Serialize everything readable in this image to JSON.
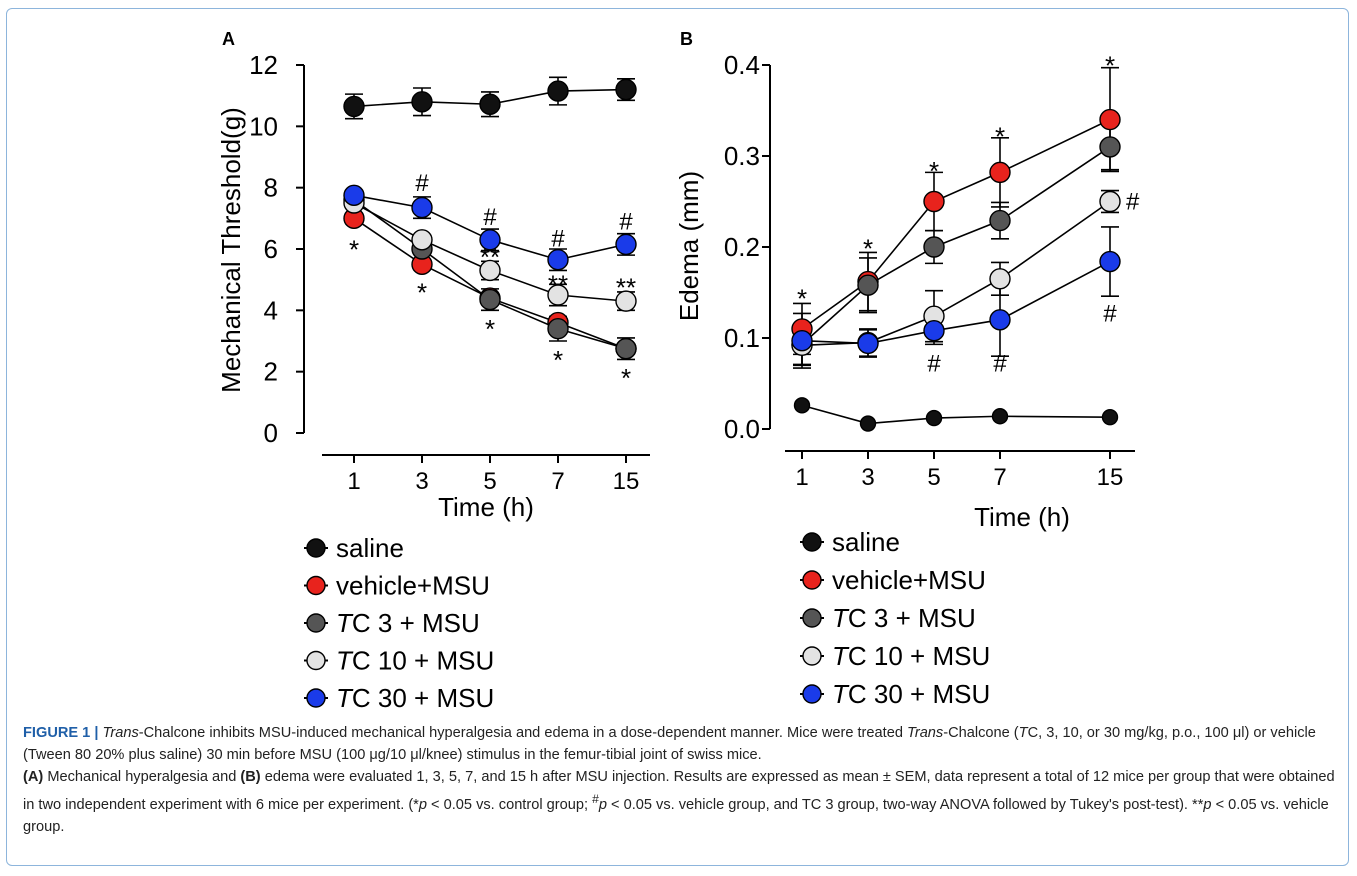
{
  "colors": {
    "saline": "#111111",
    "vehicle": "#e8231d",
    "tc3": "#555555",
    "tc10": "#e3e3e3",
    "tc30": "#1a3be9",
    "frame": "#8db5dc",
    "caption_label": "#1f5fa8"
  },
  "chart_data": [
    {
      "panel": "A",
      "type": "line",
      "xlabel": "Time (h)",
      "ylabel": "Mechanical Threshold(g)",
      "x": [
        1,
        3,
        5,
        7,
        15
      ],
      "x_tick_labels": [
        "1",
        "3",
        "5",
        "7",
        "15"
      ],
      "ylim": [
        0,
        12
      ],
      "y_ticks": [
        "0",
        "2",
        "4",
        "6",
        "8",
        "10",
        "12"
      ],
      "series": [
        {
          "key": "saline",
          "name": "saline",
          "values": [
            10.65,
            10.8,
            10.72,
            11.15,
            11.2
          ],
          "errors": [
            0.4,
            0.45,
            0.4,
            0.45,
            0.35
          ]
        },
        {
          "key": "vehicle",
          "name": "vehicle+MSU",
          "values": [
            7.0,
            5.5,
            4.4,
            3.6,
            2.75
          ],
          "errors": [
            0.0,
            0.0,
            0.0,
            0.0,
            0.0
          ]
        },
        {
          "key": "tc3",
          "name": "TC 3 + MSU",
          "values": [
            7.6,
            6.0,
            4.35,
            3.4,
            2.75
          ],
          "errors": [
            0.0,
            0.0,
            0.35,
            0.4,
            0.35
          ]
        },
        {
          "key": "tc10",
          "name": "TC 10 + MSU",
          "values": [
            7.5,
            6.3,
            5.3,
            4.5,
            4.3
          ],
          "errors": [
            0.0,
            0.0,
            0.3,
            0.35,
            0.3
          ]
        },
        {
          "key": "tc30",
          "name": "TC 30 + MSU",
          "values": [
            7.75,
            7.35,
            6.3,
            5.65,
            6.15
          ],
          "errors": [
            0.0,
            0.35,
            0.35,
            0.35,
            0.35
          ]
        }
      ],
      "annotations": [
        {
          "x": 1,
          "y": 6.15,
          "text": "*"
        },
        {
          "x": 3,
          "y": 4.75,
          "text": "*"
        },
        {
          "x": 5,
          "y": 3.55,
          "text": "*"
        },
        {
          "x": 7,
          "y": 2.55,
          "text": "*"
        },
        {
          "x": 15,
          "y": 1.95,
          "text": "*"
        },
        {
          "x": 3,
          "y": 8.15,
          "text": "#"
        },
        {
          "x": 5,
          "y": 7.05,
          "text": "#"
        },
        {
          "x": 7,
          "y": 6.35,
          "text": "#"
        },
        {
          "x": 15,
          "y": 6.9,
          "text": "#"
        },
        {
          "x": 5,
          "y": 5.9,
          "text": "**"
        },
        {
          "x": 7,
          "y": 5.0,
          "text": "**"
        },
        {
          "x": 15,
          "y": 4.9,
          "text": "**"
        }
      ]
    },
    {
      "panel": "B",
      "type": "line",
      "xlabel": "Time (h)",
      "ylabel": "Edema (mm)",
      "x": [
        1,
        3,
        5,
        7,
        15
      ],
      "x_tick_labels": [
        "1",
        "3",
        "5",
        "7",
        "15"
      ],
      "ylim": [
        0,
        0.4
      ],
      "y_ticks": [
        "0.0",
        "0.1",
        "0.2",
        "0.3",
        "0.4"
      ],
      "series": [
        {
          "key": "saline",
          "name": "saline",
          "values": [
            0.026,
            0.006,
            0.012,
            0.014,
            0.013
          ],
          "errors": [
            0.0,
            0.0,
            0.0,
            0.0,
            0.0
          ]
        },
        {
          "key": "vehicle",
          "name": "vehicle+MSU",
          "values": [
            0.11,
            0.162,
            0.25,
            0.282,
            0.34
          ],
          "errors": [
            0.028,
            0.032,
            0.032,
            0.038,
            0.057
          ]
        },
        {
          "key": "tc3",
          "name": "TC 3 + MSU",
          "values": [
            0.093,
            0.158,
            0.2,
            0.229,
            0.31
          ],
          "errors": [
            0.022,
            0.03,
            0.018,
            0.02,
            0.025
          ]
        },
        {
          "key": "tc10",
          "name": "TC 10 + MSU",
          "values": [
            0.092,
            0.095,
            0.124,
            0.165,
            0.25
          ],
          "errors": [
            0.022,
            0.015,
            0.028,
            0.018,
            0.012
          ]
        },
        {
          "key": "tc30",
          "name": "TC 30 + MSU",
          "values": [
            0.097,
            0.094,
            0.108,
            0.12,
            0.184
          ],
          "errors": [
            0.03,
            0.015,
            0.015,
            0.04,
            0.038
          ]
        }
      ],
      "annotations": [
        {
          "x": 1,
          "y": 0.149,
          "text": "*"
        },
        {
          "x": 3,
          "y": 0.204,
          "text": "*"
        },
        {
          "x": 5,
          "y": 0.289,
          "text": "*"
        },
        {
          "x": 7,
          "y": 0.327,
          "text": "*"
        },
        {
          "x": 15,
          "y": 0.405,
          "text": "*"
        },
        {
          "x": 15,
          "y": 0.25,
          "text": "#",
          "offset": "right"
        },
        {
          "x": 15,
          "y": 0.127,
          "text": "#"
        },
        {
          "x": 5,
          "y": 0.072,
          "text": "#"
        },
        {
          "x": 7,
          "y": 0.072,
          "text": "#"
        }
      ]
    }
  ],
  "panels": {
    "a_label": "A",
    "b_label": "B"
  },
  "legend": {
    "items": [
      {
        "key": "saline",
        "parts": [
          {
            "t": "saline",
            "i": false
          }
        ]
      },
      {
        "key": "vehicle",
        "parts": [
          {
            "t": "vehicle+MSU",
            "i": false
          }
        ]
      },
      {
        "key": "tc3",
        "parts": [
          {
            "t": "T",
            "i": true
          },
          {
            "t": "C 3 + MSU",
            "i": false
          }
        ]
      },
      {
        "key": "tc10",
        "parts": [
          {
            "t": "T",
            "i": true
          },
          {
            "t": "C 10 + MSU",
            "i": false
          }
        ]
      },
      {
        "key": "tc30",
        "parts": [
          {
            "t": "T",
            "i": true
          },
          {
            "t": "C 30 + MSU",
            "i": false
          }
        ]
      }
    ]
  },
  "caption": {
    "label": "FIGURE 1 |",
    "p1_a": "Trans",
    "p1_b": "-Chalcone inhibits MSU-induced mechanical hyperalgesia and edema in a dose-dependent manner. Mice were treated ",
    "p1_c": "Trans",
    "p1_d": "-Chalcone (",
    "p1_e": "T",
    "p1_f": "C, 3, 10, or 30 mg/kg, p.o., 100 μl) or vehicle (Tween 80 20% plus saline) 30 min before MSU (100 μg/10 μl/knee) stimulus in the femur-tibial joint of swiss mice.",
    "p2_a": "(A)",
    "p2_b": " Mechanical hyperalgesia and ",
    "p2_c": "(B)",
    "p2_d": " edema were evaluated 1, 3, 5, 7, and 15 h after MSU injection. Results are expressed as mean ± SEM, data represent a total of 12 mice per group that were obtained in two independent experiment with 6 mice per experiment. (*",
    "p2_e": "p",
    "p2_f": " < 0.05 vs. control group; ",
    "p2_g": "#",
    "p2_h": "p",
    "p2_i": " < 0.05 vs. vehicle group, and TC 3 group, two-way ANOVA followed by Tukey's post-test). **",
    "p2_j": "p",
    "p2_k": " < 0.05 vs. vehicle group."
  }
}
